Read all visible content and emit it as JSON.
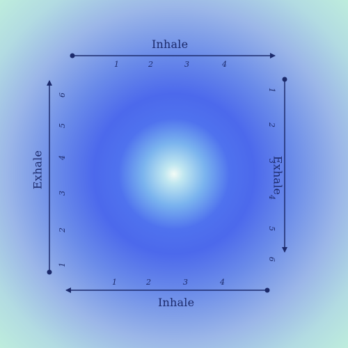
{
  "breathing_box": {
    "top": {
      "label": "Inhale",
      "counts": [
        "1",
        "2",
        "3",
        "4"
      ]
    },
    "right": {
      "label": "Exhale",
      "counts": [
        "1",
        "2",
        "3",
        "4",
        "5",
        "6"
      ]
    },
    "bottom": {
      "label": "Inhale",
      "counts": [
        "1",
        "2",
        "3",
        "4"
      ]
    },
    "left": {
      "label": "Exhale",
      "counts": [
        "1",
        "2",
        "3",
        "4",
        "5",
        "6"
      ]
    }
  },
  "colors": {
    "line": "#1c2a6b",
    "center_glow": "#f2fbf6",
    "mid_blue": "#4f72ee",
    "edge_mint": "#bfefdc"
  }
}
